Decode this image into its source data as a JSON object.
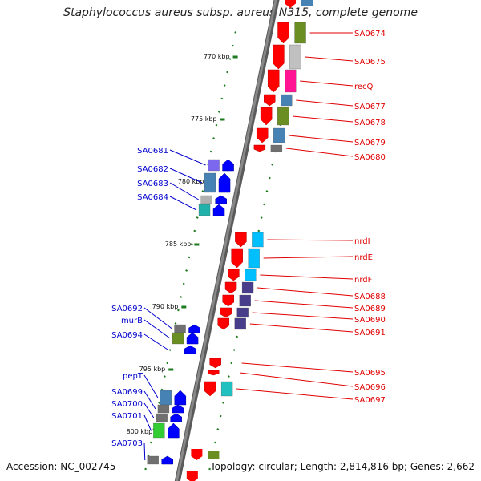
{
  "title": "Staphylococcus aureus subsp. aureus N315, complete genome",
  "accession_text": "Accession: NC_002745",
  "topology_text": "Topology: circular; Length: 2,814,816 bp; Genes: 2,662",
  "colors": {
    "backbone": "#888888",
    "tick": "#1e7a1e",
    "forward_label": "#e00000",
    "reverse_label": "#0000cc"
  },
  "ruler": [
    {
      "label": "770 kbp"
    },
    {
      "label": "775 kbp"
    },
    {
      "label": "780 kbp"
    },
    {
      "label": "785 kbp"
    },
    {
      "label": "790 kbp"
    },
    {
      "label": "795 kbp"
    },
    {
      "label": "800 kbp"
    }
  ],
  "forward_genes": [
    {
      "label": "SA0674",
      "cog_color": "#6b8e23"
    },
    {
      "label": "SA0675",
      "cog_color": "#c0c0c0"
    },
    {
      "label": "recQ",
      "cog_color": "#ff1493"
    },
    {
      "label": "SA0677",
      "cog_color": "#4682b4"
    },
    {
      "label": "SA0678",
      "cog_color": "#6b8e23"
    },
    {
      "label": "SA0679",
      "cog_color": "#4682b4"
    },
    {
      "label": "SA0680",
      "cog_color": "#707070"
    },
    {
      "label": "nrdI",
      "cog_color": "#00bfff"
    },
    {
      "label": "nrdE",
      "cog_color": "#00bfff"
    },
    {
      "label": "nrdF",
      "cog_color": "#00bfff"
    },
    {
      "label": "SA0688",
      "cog_color": "#483d8b"
    },
    {
      "label": "SA0689",
      "cog_color": "#483d8b"
    },
    {
      "label": "SA0690",
      "cog_color": "#483d8b"
    },
    {
      "label": "SA0691",
      "cog_color": "#483d8b"
    },
    {
      "label": "SA0695",
      "cog_color": ""
    },
    {
      "label": "SA0696",
      "cog_color": ""
    },
    {
      "label": "SA0697",
      "cog_color": "#20c0c0"
    }
  ],
  "reverse_genes": [
    {
      "label": "SA0681",
      "cog_color": "#7b68ee"
    },
    {
      "label": "SA0682",
      "cog_color": "#4682b4"
    },
    {
      "label": "SA0683",
      "cog_color": "#b0b0b0"
    },
    {
      "label": "SA0684",
      "cog_color": "#20b2aa"
    },
    {
      "label": "SA0692",
      "cog_color": "#707070"
    },
    {
      "label": "murB",
      "cog_color": "#6b8e23"
    },
    {
      "label": "SA0694",
      "cog_color": ""
    },
    {
      "label": "pepT",
      "cog_color": "#4682b4"
    },
    {
      "label": "SA0699",
      "cog_color": "#707070"
    },
    {
      "label": "SA0700",
      "cog_color": "#707070"
    },
    {
      "label": "SA0701",
      "cog_color": "#32cd32"
    },
    {
      "label": "SA0703",
      "cog_color": "#707070"
    }
  ]
}
